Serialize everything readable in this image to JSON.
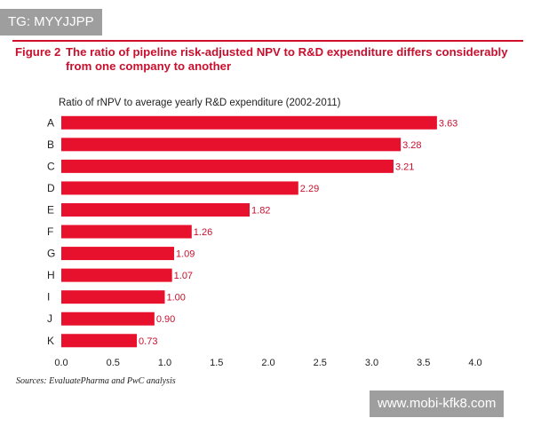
{
  "watermarks": {
    "top_left": "TG: MYYJJPP",
    "bottom_right": "www.mobi-kfk8.com"
  },
  "figure": {
    "number": "Figure 2",
    "title_line1": "The ratio of pipeline risk-adjusted NPV to R&D expenditure differs considerably",
    "title_line2": "from one company to another",
    "source": "Sources: EvaluatePharma and PwC analysis"
  },
  "colors": {
    "bar": "#e8112d",
    "title": "#c8102e",
    "value_label": "#c8102e"
  },
  "chart_data": {
    "type": "bar",
    "orientation": "horizontal",
    "title": "Ratio of rNPV to average yearly R&D expenditure (2002-2011)",
    "categories": [
      "A",
      "B",
      "C",
      "D",
      "E",
      "F",
      "G",
      "H",
      "I",
      "J",
      "K"
    ],
    "values": [
      3.63,
      3.28,
      3.21,
      2.29,
      1.82,
      1.26,
      1.09,
      1.07,
      1.0,
      0.9,
      0.73
    ],
    "value_labels": [
      "3.63",
      "3.28",
      "3.21",
      "2.29",
      "1.82",
      "1.26",
      "1.09",
      "1.07",
      "1.00",
      "0.90",
      "0.73"
    ],
    "xlim": [
      0,
      4.0
    ],
    "xticks": [
      "0.0",
      "0.5",
      "1.0",
      "1.5",
      "2.0",
      "2.5",
      "3.0",
      "3.5",
      "4.0"
    ],
    "grid": false,
    "legend": "none"
  }
}
